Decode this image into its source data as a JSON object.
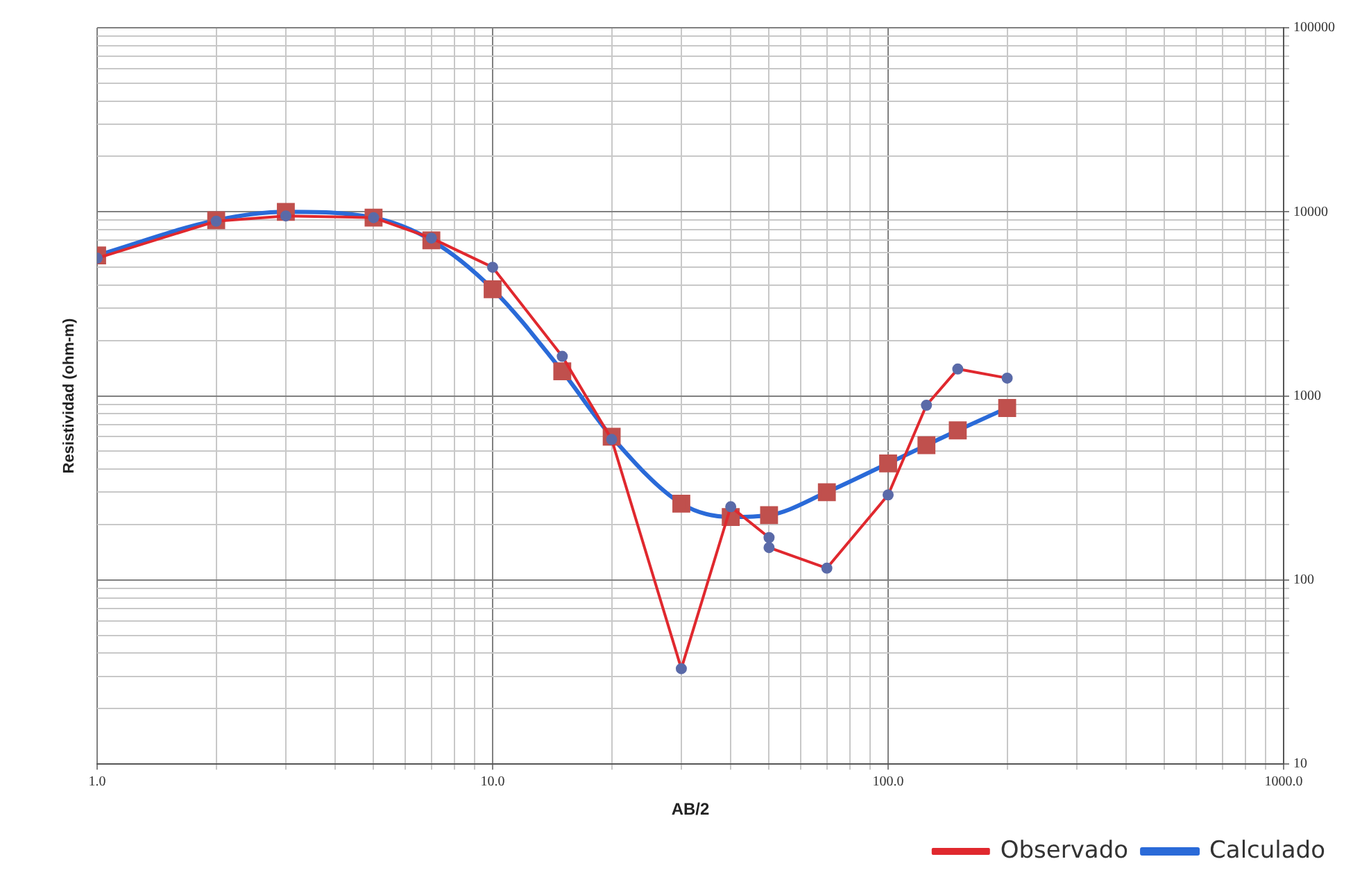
{
  "chart_data": {
    "type": "line",
    "xlabel": "AB/2",
    "ylabel": "Resistividad (ohm-m)",
    "log": "xy",
    "grid": true,
    "legend": "bottom right",
    "xlim": [
      1,
      1000
    ],
    "ylim": [
      10,
      100000
    ],
    "xticks": [
      {
        "value": 1,
        "label": "1.0"
      },
      {
        "value": 2,
        "label": null
      },
      {
        "value": 3,
        "label": null
      },
      {
        "value": 4,
        "label": null
      },
      {
        "value": 5,
        "label": null
      },
      {
        "value": 6,
        "label": null
      },
      {
        "value": 7,
        "label": null
      },
      {
        "value": 8,
        "label": null
      },
      {
        "value": 9,
        "label": null
      },
      {
        "value": 10,
        "label": "10.0"
      },
      {
        "value": 20,
        "label": null
      },
      {
        "value": 30,
        "label": null
      },
      {
        "value": 40,
        "label": null
      },
      {
        "value": 50,
        "label": null
      },
      {
        "value": 60,
        "label": null
      },
      {
        "value": 70,
        "label": null
      },
      {
        "value": 80,
        "label": null
      },
      {
        "value": 90,
        "label": null
      },
      {
        "value": 100,
        "label": "100.0"
      },
      {
        "value": 200,
        "label": null
      },
      {
        "value": 300,
        "label": null
      },
      {
        "value": 400,
        "label": null
      },
      {
        "value": 500,
        "label": null
      },
      {
        "value": 600,
        "label": null
      },
      {
        "value": 700,
        "label": null
      },
      {
        "value": 800,
        "label": null
      },
      {
        "value": 900,
        "label": null
      },
      {
        "value": 1000,
        "label": "1000.0"
      }
    ],
    "yticks": [
      10,
      {
        "value": 20,
        "label": null
      },
      {
        "value": 30,
        "label": null
      },
      {
        "value": 40,
        "label": null
      },
      {
        "value": 50,
        "label": null
      },
      {
        "value": 60,
        "label": null
      },
      {
        "value": 70,
        "label": null
      },
      {
        "value": 80,
        "label": null
      },
      {
        "value": 90,
        "label": null
      },
      100,
      {
        "value": 200,
        "label": null
      },
      {
        "value": 300,
        "label": null
      },
      {
        "value": 400,
        "label": null
      },
      {
        "value": 500,
        "label": null
      },
      {
        "value": 600,
        "label": null
      },
      {
        "value": 700,
        "label": null
      },
      {
        "value": 800,
        "label": null
      },
      {
        "value": 900,
        "label": null
      },
      1000,
      {
        "value": 2000,
        "label": null
      },
      {
        "value": 3000,
        "label": null
      },
      {
        "value": 4000,
        "label": null
      },
      {
        "value": 5000,
        "label": null
      },
      {
        "value": 6000,
        "label": null
      },
      {
        "value": 7000,
        "label": null
      },
      {
        "value": 8000,
        "label": null
      },
      {
        "value": 9000,
        "label": null
      },
      10000,
      {
        "value": 20000,
        "label": null
      },
      {
        "value": 30000,
        "label": null
      },
      {
        "value": 40000,
        "label": null
      },
      {
        "value": 50000,
        "label": null
      },
      {
        "value": 60000,
        "label": null
      },
      {
        "value": 70000,
        "label": null
      },
      {
        "value": 80000,
        "label": null
      },
      {
        "value": 90000,
        "label": null
      },
      100000
    ],
    "series": [
      {
        "name": "Observado",
        "color": "#e0282e",
        "marker": "circle",
        "x": [
          1,
          2,
          3,
          5,
          7,
          10,
          15,
          20,
          30,
          40,
          50,
          50,
          70,
          100,
          125,
          150,
          200
        ],
        "values": [
          5600,
          8900,
          9500,
          9300,
          7200,
          5000,
          1640,
          580,
          33,
          250,
          170,
          150,
          116,
          290,
          890,
          1400,
          1250
        ]
      },
      {
        "name": "Calculado",
        "color": "#2a6ad8",
        "marker": "square",
        "x": [
          1,
          2,
          3,
          5,
          7,
          10,
          15,
          20,
          30,
          40,
          50,
          70,
          100,
          125,
          150,
          200
        ],
        "values": [
          5800,
          9000,
          10000,
          9300,
          7000,
          3800,
          1360,
          600,
          260,
          220,
          225,
          300,
          430,
          540,
          650,
          860
        ]
      }
    ]
  }
}
